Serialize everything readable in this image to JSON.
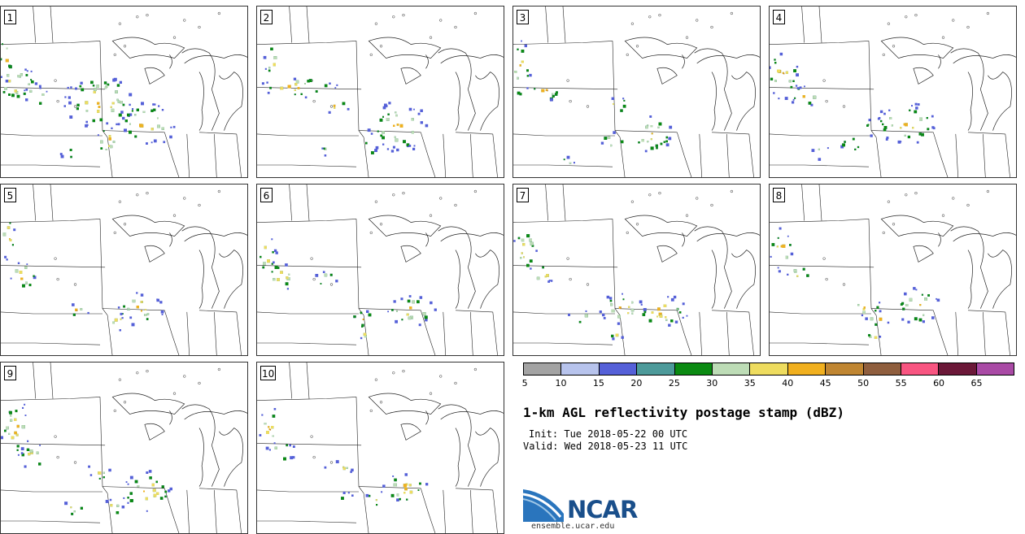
{
  "figure": {
    "title": "1-km AGL reflectivity postage stamp (dBZ)",
    "init": "Init: Tue 2018-05-22 00 UTC",
    "valid": "Valid: Wed 2018-05-23 11 UTC",
    "org": "NCAR",
    "url": "ensemble.ucar.edu"
  },
  "members": [
    "1",
    "2",
    "3",
    "4",
    "5",
    "6",
    "7",
    "8",
    "9",
    "10"
  ],
  "colorbar": {
    "ticks": [
      "5",
      "10",
      "15",
      "20",
      "25",
      "30",
      "35",
      "40",
      "45",
      "50",
      "55",
      "60",
      "65"
    ],
    "colors": [
      "#a3a3a3",
      "#b7c3ec",
      "#5560d8",
      "#4d9a9a",
      "#0b8a12",
      "#bddcb6",
      "#eedc5f",
      "#f1b01f",
      "#c08632",
      "#8f5e3e",
      "#f85581",
      "#6b1838",
      "#a94aa5"
    ]
  },
  "storms": [
    [
      [
        0.06,
        0.45,
        0.1,
        0.11
      ],
      [
        0.14,
        0.52,
        0.07,
        0.06
      ],
      [
        0.4,
        0.55,
        0.15,
        0.16
      ],
      [
        0.59,
        0.68,
        0.12,
        0.13
      ],
      [
        0.43,
        0.78,
        0.05,
        0.1
      ],
      [
        0.02,
        0.3,
        0.03,
        0.14
      ],
      [
        0.27,
        0.85,
        0.03,
        0.04
      ]
    ],
    [
      [
        0.16,
        0.47,
        0.17,
        0.06
      ],
      [
        0.32,
        0.58,
        0.06,
        0.04
      ],
      [
        0.57,
        0.7,
        0.12,
        0.15
      ],
      [
        0.46,
        0.8,
        0.03,
        0.07
      ],
      [
        0.06,
        0.32,
        0.03,
        0.1
      ],
      [
        0.28,
        0.84,
        0.02,
        0.03
      ]
    ],
    [
      [
        0.03,
        0.37,
        0.04,
        0.18
      ],
      [
        0.13,
        0.49,
        0.06,
        0.07
      ],
      [
        0.42,
        0.57,
        0.05,
        0.05
      ],
      [
        0.56,
        0.74,
        0.09,
        0.11
      ],
      [
        0.4,
        0.78,
        0.05,
        0.05
      ],
      [
        0.22,
        0.9,
        0.03,
        0.03
      ]
    ],
    [
      [
        0.05,
        0.4,
        0.07,
        0.14
      ],
      [
        0.15,
        0.52,
        0.07,
        0.07
      ],
      [
        0.43,
        0.7,
        0.05,
        0.06
      ],
      [
        0.55,
        0.68,
        0.12,
        0.13
      ],
      [
        0.33,
        0.8,
        0.05,
        0.05
      ],
      [
        0.21,
        0.85,
        0.04,
        0.04
      ]
    ],
    [
      [
        0.03,
        0.3,
        0.03,
        0.14
      ],
      [
        0.09,
        0.53,
        0.06,
        0.09
      ],
      [
        0.3,
        0.73,
        0.06,
        0.04
      ],
      [
        0.56,
        0.72,
        0.1,
        0.1
      ],
      [
        0.48,
        0.8,
        0.06,
        0.05
      ]
    ],
    [
      [
        0.04,
        0.4,
        0.04,
        0.12
      ],
      [
        0.1,
        0.53,
        0.07,
        0.08
      ],
      [
        0.28,
        0.55,
        0.05,
        0.05
      ],
      [
        0.62,
        0.73,
        0.11,
        0.09
      ],
      [
        0.43,
        0.78,
        0.06,
        0.05
      ],
      [
        0.44,
        0.85,
        0.03,
        0.06
      ]
    ],
    [
      [
        0.05,
        0.38,
        0.05,
        0.14
      ],
      [
        0.12,
        0.52,
        0.05,
        0.06
      ],
      [
        0.44,
        0.72,
        0.1,
        0.09
      ],
      [
        0.6,
        0.74,
        0.11,
        0.1
      ],
      [
        0.27,
        0.77,
        0.05,
        0.04
      ],
      [
        0.42,
        0.86,
        0.04,
        0.04
      ]
    ],
    [
      [
        0.05,
        0.38,
        0.05,
        0.13
      ],
      [
        0.12,
        0.52,
        0.05,
        0.05
      ],
      [
        0.39,
        0.71,
        0.06,
        0.06
      ],
      [
        0.6,
        0.71,
        0.09,
        0.11
      ],
      [
        0.44,
        0.78,
        0.05,
        0.05
      ],
      [
        0.42,
        0.88,
        0.03,
        0.04
      ]
    ],
    [
      [
        0.06,
        0.38,
        0.06,
        0.17
      ],
      [
        0.13,
        0.55,
        0.06,
        0.08
      ],
      [
        0.4,
        0.62,
        0.05,
        0.07
      ],
      [
        0.59,
        0.75,
        0.11,
        0.12
      ],
      [
        0.45,
        0.84,
        0.05,
        0.05
      ],
      [
        0.28,
        0.85,
        0.06,
        0.04
      ]
    ],
    [
      [
        0.05,
        0.38,
        0.04,
        0.14
      ],
      [
        0.1,
        0.52,
        0.06,
        0.06
      ],
      [
        0.33,
        0.62,
        0.06,
        0.05
      ],
      [
        0.59,
        0.73,
        0.1,
        0.09
      ],
      [
        0.47,
        0.8,
        0.04,
        0.05
      ],
      [
        0.36,
        0.78,
        0.03,
        0.03
      ]
    ]
  ]
}
